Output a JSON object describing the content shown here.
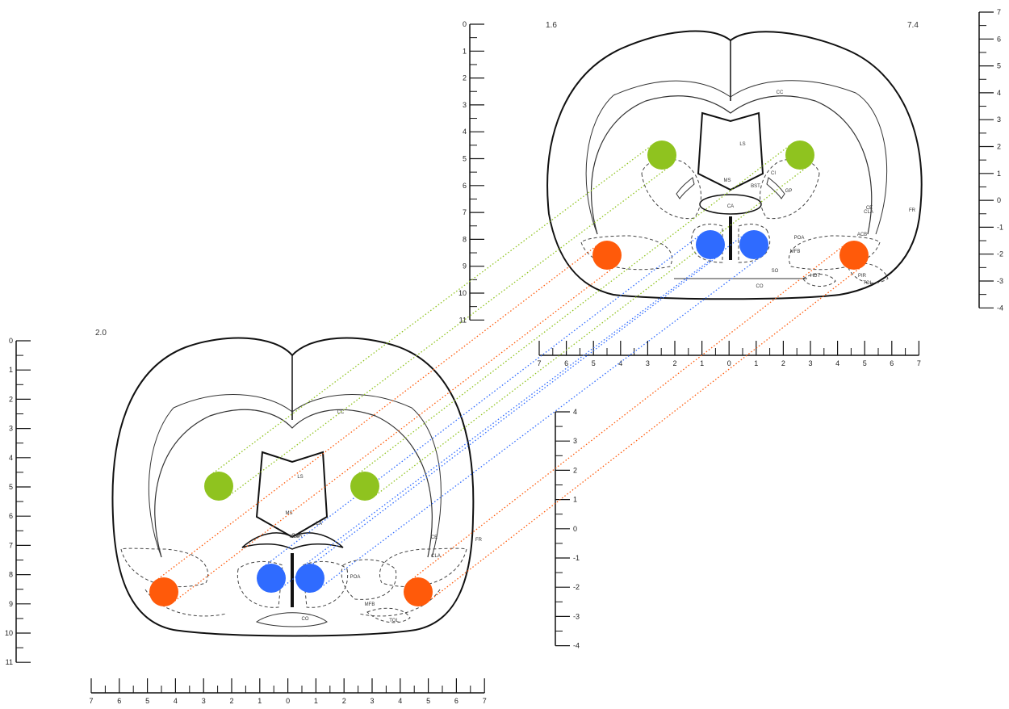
{
  "plates": {
    "back": {
      "label_left": "1.6",
      "label_right": "7.4"
    },
    "front": {
      "label_left": "2.0"
    }
  },
  "structures": {
    "back": [
      "CC",
      "LS",
      "MS",
      "CA",
      "BST",
      "CI",
      "GP",
      "CE",
      "POA",
      "MFB",
      "SO",
      "CO",
      "HDT",
      "PIR",
      "CLA",
      "ACB",
      "TOL",
      "FR"
    ],
    "front": [
      "CC",
      "LS",
      "MS",
      "BCA",
      "CA",
      "ACB",
      "CE",
      "CLA",
      "POA",
      "MFB",
      "CO",
      "TOL",
      "FR"
    ]
  },
  "scales": {
    "back_vertical_left": [
      "0",
      "1",
      "2",
      "3",
      "4",
      "5",
      "6",
      "7",
      "8",
      "9",
      "10",
      "11"
    ],
    "back_vertical_right": [
      "7",
      "6",
      "5",
      "4",
      "3",
      "2",
      "1",
      "0",
      "-1",
      "-2",
      "-3",
      "-4"
    ],
    "back_horizontal": [
      "7",
      "6",
      "5",
      "4",
      "3",
      "2",
      "1",
      "0",
      "1",
      "2",
      "3",
      "4",
      "5",
      "6",
      "7"
    ],
    "front_vertical_left": [
      "0",
      "1",
      "2",
      "3",
      "4",
      "5",
      "6",
      "7",
      "8",
      "9",
      "10",
      "11"
    ],
    "front_vertical_right": [
      "4",
      "3",
      "2",
      "1",
      "0",
      "-1",
      "-2",
      "-3",
      "-4"
    ],
    "front_horizontal": [
      "7",
      "6",
      "5",
      "4",
      "3",
      "2",
      "1",
      "0",
      "1",
      "2",
      "3",
      "4",
      "5",
      "6",
      "7"
    ]
  },
  "markers": {
    "colors": {
      "green": "#8fc31f",
      "orange": "#ff5a0a",
      "blue": "#2f6bff"
    }
  }
}
